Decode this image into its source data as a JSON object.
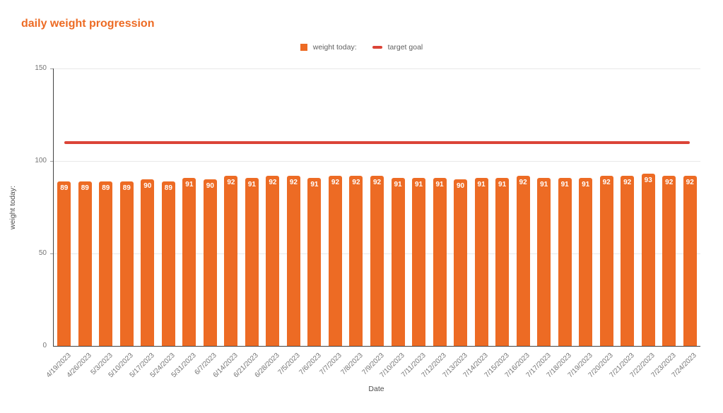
{
  "page": {
    "title": "daily weight progression"
  },
  "legend": {
    "items": [
      {
        "label": "weight today:",
        "swatch": "square",
        "color": "#ED6B24"
      },
      {
        "label": "target goal",
        "swatch": "line",
        "color": "#DB4437"
      }
    ]
  },
  "colors": {
    "accent_orange": "#ED6B24",
    "target_red": "#DB4437",
    "gridline": "#E8E8E8",
    "axis_line": "#424242",
    "tick_text": "#757575",
    "axis_title_text": "#4D4D4D",
    "legend_text": "#616161",
    "bar_label_text": "#FFFFFF",
    "background": "#FFFFFF"
  },
  "chart_data": {
    "type": "bar",
    "title": "daily weight progression",
    "xlabel": "Date",
    "ylabel": "weight today:",
    "ylim": [
      0,
      150
    ],
    "yticks": [
      0,
      50,
      100,
      150
    ],
    "grid": true,
    "legend_position": "top-center",
    "categories": [
      "4/19/2023",
      "4/26/2023",
      "5/3/2023",
      "5/10/2023",
      "5/17/2023",
      "5/24/2023",
      "5/31/2023",
      "6/7/2023",
      "6/14/2023",
      "6/21/2023",
      "6/28/2023",
      "7/5/2023",
      "7/6/2023",
      "7/7/2023",
      "7/8/2023",
      "7/9/2023",
      "7/10/2023",
      "7/11/2023",
      "7/12/2023",
      "7/13/2023",
      "7/14/2023",
      "7/15/2023",
      "7/16/2023",
      "7/17/2023",
      "7/18/2023",
      "7/19/2023",
      "7/20/2023",
      "7/21/2023",
      "7/22/2023",
      "7/23/2023",
      "7/24/2023"
    ],
    "series": [
      {
        "name": "weight today:",
        "type": "bar",
        "color": "#ED6B24",
        "data_labels": true,
        "values": [
          89,
          89,
          89,
          89,
          90,
          89,
          91,
          90,
          92,
          91,
          92,
          92,
          91,
          92,
          92,
          92,
          91,
          91,
          91,
          90,
          91,
          91,
          92,
          91,
          91,
          91,
          92,
          92,
          93,
          92,
          92
        ]
      },
      {
        "name": "target goal",
        "type": "line",
        "color": "#DB4437",
        "value": 110
      }
    ]
  }
}
